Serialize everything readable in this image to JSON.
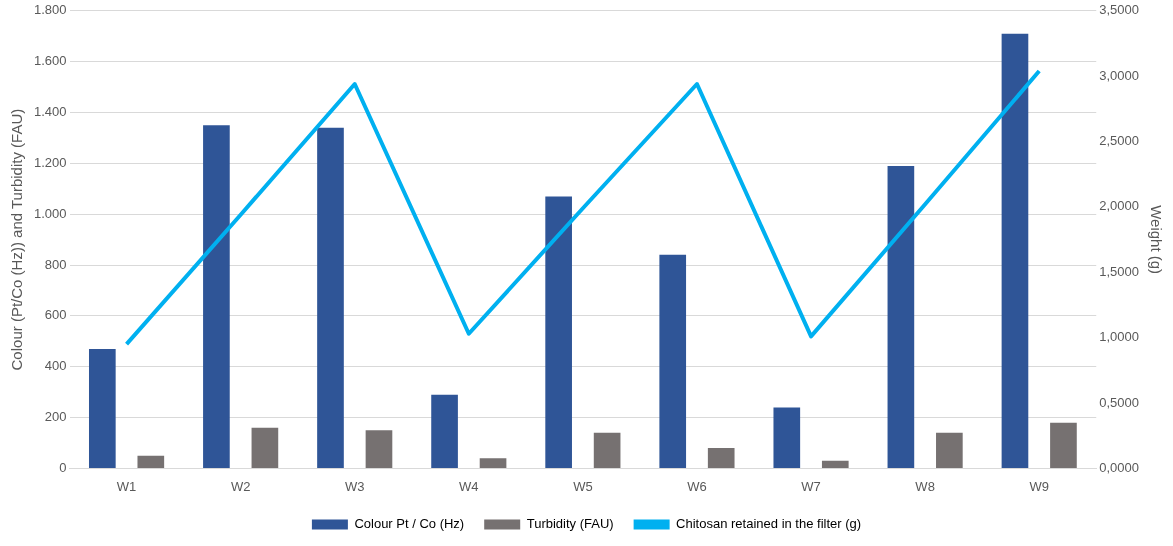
{
  "chart_data": {
    "type": "bar",
    "ylabel": "Colour (Pt/Co (Hz)) and Turbidity (FAU)",
    "y2label": "Weight (g)",
    "categories": [
      "W1",
      "W2",
      "W3",
      "W4",
      "W5",
      "W6",
      "W7",
      "W8",
      "W9"
    ],
    "series": [
      {
        "name": "Colour Pt / Co (Hz)",
        "color": "#2f5597",
        "values": [
          470,
          1350,
          1340,
          290,
          1070,
          840,
          240,
          1190,
          1710
        ]
      },
      {
        "name": "Turbidity (FAU)",
        "color": "#767171",
        "values": [
          50,
          160,
          150,
          40,
          140,
          80,
          30,
          140,
          180
        ]
      },
      {
        "name": "Chitosan retained in the filter (g)",
        "type": "line",
        "axis": "y2",
        "color": "#00b0f0",
        "values": [
          0.95,
          1.94,
          2.94,
          1.03,
          1.99,
          2.94,
          1.01,
          2.02,
          3.04
        ]
      }
    ],
    "ylim": [
      0,
      1800
    ],
    "yticks": [
      0,
      200,
      400,
      600,
      800,
      {
        "value": 1000,
        "label": "1.000"
      },
      {
        "value": 1200,
        "label": "1.200"
      },
      {
        "value": 1400,
        "label": "1.400"
      },
      {
        "value": 1600,
        "label": "1.600"
      },
      {
        "value": 1800,
        "label": "1.800"
      }
    ],
    "y2lim": [
      0,
      3.5
    ],
    "y2ticks": [
      {
        "value": 0,
        "label": "0,0000"
      },
      {
        "value": 0.5,
        "label": "0,5000"
      },
      {
        "value": 1,
        "label": "1,0000"
      },
      {
        "value": 1.5,
        "label": "1,5000"
      },
      {
        "value": 2,
        "label": "2,0000"
      },
      {
        "value": 2.5,
        "label": "2,5000"
      },
      {
        "value": 3,
        "label": "3,0000"
      },
      {
        "value": 3.5,
        "label": "3,5000"
      }
    ],
    "grid": "y",
    "legend": "bottom",
    "marker": "none"
  }
}
